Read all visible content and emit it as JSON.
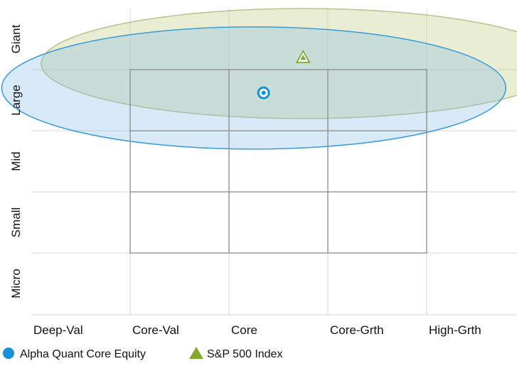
{
  "chart_data": {
    "type": "scatter",
    "title": "",
    "x_categories": [
      "Deep-Val",
      "Core-Val",
      "Core",
      "Core-Grth",
      "High-Grth"
    ],
    "y_categories": [
      "Giant",
      "Large",
      "Mid",
      "Small",
      "Micro"
    ],
    "grid": true,
    "legend_position": "bottom-left",
    "style_box": {
      "x_range": [
        1,
        4
      ],
      "y_range": [
        1,
        4
      ]
    },
    "series": [
      {
        "name": "Alpha Quant Core Equity",
        "marker": "circle",
        "color": "#1a8fd6",
        "x": 2.35,
        "y": 1.38,
        "zone": {
          "x_range": [
            -0.3,
            4.8
          ],
          "y_range": [
            0.3,
            2.3
          ]
        }
      },
      {
        "name": "S&P 500 Index",
        "marker": "triangle",
        "color": "#7faa2f",
        "x": 2.75,
        "y": 0.8,
        "zone": {
          "x_range": [
            0.1,
            5.4
          ],
          "y_range": [
            0,
            1.8
          ]
        }
      }
    ]
  }
}
